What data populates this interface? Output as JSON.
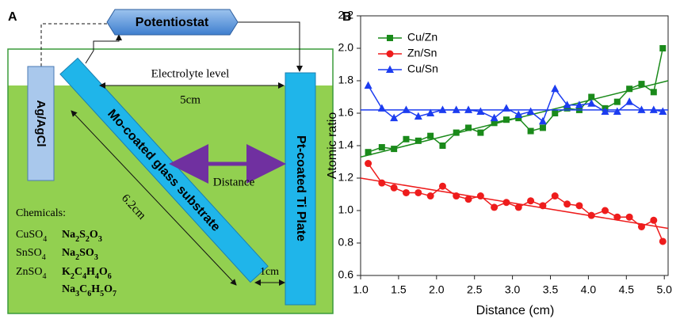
{
  "panel_a": {
    "label": "A",
    "potentiostat": "Potentiostat",
    "reference": "Ag/AgCl",
    "substrate": "Mo-coated glass substrate",
    "counter": "Pt-coated Ti Plate",
    "electrolyte": "Electrolyte level",
    "width": "5cm",
    "distance": "Distance",
    "length": "6.2cm",
    "gap": "1cm",
    "chemicals": {
      "title": "Chemicals:",
      "left": [
        "CuSO4",
        "SnSO4",
        "ZnSO4"
      ],
      "right": [
        "Na2S2O3",
        "Na2SO3",
        "K2C4H4O6",
        "Na3C6H5O7"
      ]
    }
  },
  "chart_data": {
    "type": "line",
    "panel_label": "B",
    "x_label": "Distance (cm)",
    "y_label": "Atomic ratio",
    "x": [
      1.1,
      1.28,
      1.44,
      1.6,
      1.76,
      1.92,
      2.08,
      2.26,
      2.42,
      2.58,
      2.76,
      2.92,
      3.08,
      3.24,
      3.4,
      3.56,
      3.72,
      3.88,
      4.04,
      4.22,
      4.38,
      4.54,
      4.7,
      4.86,
      4.98
    ],
    "series": [
      {
        "name": "Cu/Zn",
        "color": "#1a8a1a",
        "marker": "square",
        "values": [
          1.36,
          1.39,
          1.38,
          1.44,
          1.43,
          1.46,
          1.4,
          1.48,
          1.51,
          1.48,
          1.54,
          1.56,
          1.57,
          1.49,
          1.51,
          1.6,
          1.63,
          1.62,
          1.7,
          1.63,
          1.67,
          1.75,
          1.78,
          1.73,
          2.0
        ],
        "fit": [
          1.33,
          1.8
        ]
      },
      {
        "name": "Zn/Sn",
        "color": "#ee1c1c",
        "marker": "circle",
        "values": [
          1.29,
          1.17,
          1.14,
          1.11,
          1.11,
          1.09,
          1.15,
          1.09,
          1.07,
          1.09,
          1.02,
          1.05,
          1.02,
          1.06,
          1.03,
          1.09,
          1.04,
          1.03,
          0.97,
          1.0,
          0.96,
          0.96,
          0.9,
          0.94,
          0.81
        ],
        "fit": [
          1.2,
          0.89
        ]
      },
      {
        "name": "Cu/Sn",
        "color": "#1c3cf0",
        "marker": "triangle",
        "values": [
          1.77,
          1.63,
          1.57,
          1.62,
          1.58,
          1.6,
          1.62,
          1.62,
          1.62,
          1.61,
          1.57,
          1.63,
          1.59,
          1.61,
          1.55,
          1.75,
          1.65,
          1.65,
          1.66,
          1.61,
          1.61,
          1.67,
          1.62,
          1.62,
          1.61
        ],
        "fit": [
          1.62,
          1.62
        ]
      }
    ],
    "fit_x": [
      1.0,
      5.05
    ],
    "xlim": [
      1.0,
      5.05
    ],
    "ylim": [
      0.6,
      2.2
    ],
    "xticks": [
      {
        "value": 1,
        "label": "1.0"
      },
      1.5,
      {
        "value": 2,
        "label": "2.0"
      },
      2.5,
      {
        "value": 3,
        "label": "3.0"
      },
      3.5,
      {
        "value": 4,
        "label": "4.0"
      },
      4.5,
      {
        "value": 5,
        "label": "5.0"
      }
    ],
    "yticks": [
      0.6,
      0.8,
      {
        "value": 1,
        "label": "1.0"
      },
      1.2,
      1.4,
      1.6,
      1.8,
      {
        "value": 2,
        "label": "2.0"
      },
      2.2
    ],
    "legend": "upper-left"
  }
}
